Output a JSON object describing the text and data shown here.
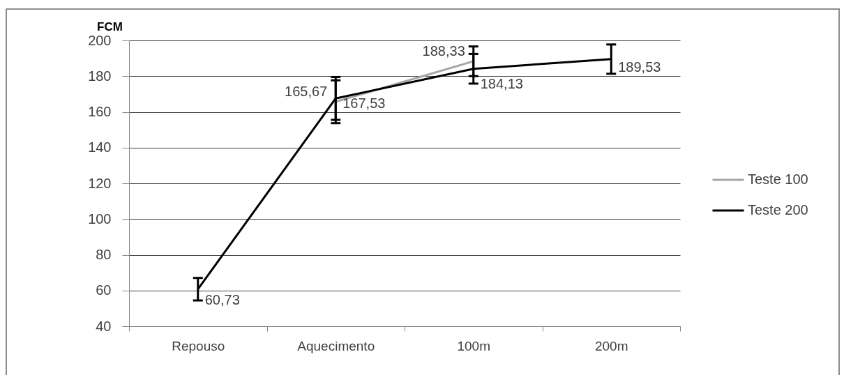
{
  "chart_data": {
    "type": "line",
    "ylabel": "FCM",
    "categories": [
      "Repouso",
      "Aquecimento",
      "100m",
      "200m"
    ],
    "series": [
      {
        "name": "Teste 100",
        "color": "#a6a6a6",
        "values": [
          null,
          165.67,
          188.33,
          null
        ],
        "errors": [
          null,
          12,
          8.3,
          null
        ],
        "value_labels": [
          null,
          "165,67",
          "188,33",
          null
        ]
      },
      {
        "name": "Teste 200",
        "color": "#000000",
        "values": [
          60.73,
          167.53,
          184.13,
          189.53
        ],
        "errors": [
          6.3,
          12,
          8.3,
          8.2
        ],
        "value_labels": [
          "60,73",
          "167,53",
          "184,13",
          "189,53"
        ]
      }
    ],
    "ylim": [
      40,
      200
    ],
    "yticks": [
      40,
      60,
      80,
      100,
      120,
      140,
      160,
      180,
      200
    ],
    "grid": "y",
    "legend": "right"
  }
}
